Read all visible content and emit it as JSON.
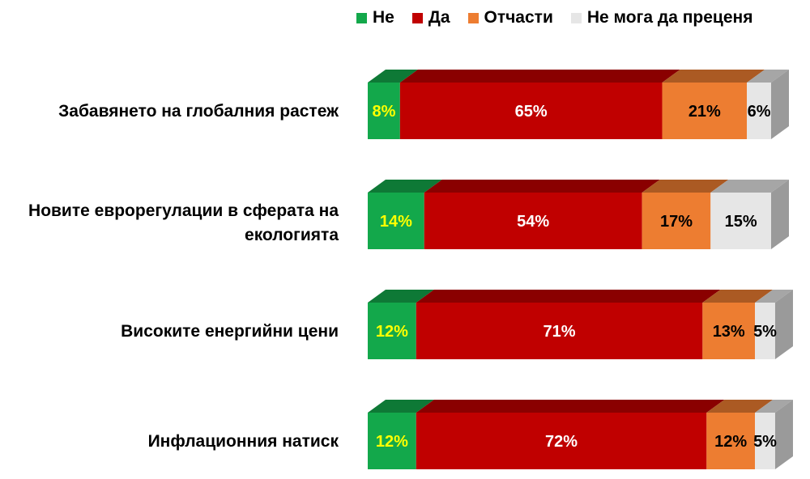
{
  "chart_data": {
    "type": "bar",
    "orientation": "horizontal",
    "stacked": true,
    "style": "3d",
    "categories": [
      "Забавянето на глобалния растеж",
      "Новите еврорегулации в сферата на екологията",
      "Високите енергийни цени",
      "Инфлационния натиск"
    ],
    "series": [
      {
        "name": "Не",
        "color": "#13A84B",
        "label_color": "#FFFF00",
        "values": [
          8,
          14,
          12,
          12
        ],
        "labels": [
          "8%",
          "14%",
          "12%",
          "12%"
        ]
      },
      {
        "name": "Да",
        "color": "#C00000",
        "label_color": "#FFFFFF",
        "values": [
          65,
          54,
          71,
          72
        ],
        "labels": [
          "65%",
          "54%",
          "71%",
          "72%"
        ]
      },
      {
        "name": "Отчасти",
        "color": "#ED7D31",
        "label_color": "#000000",
        "values": [
          21,
          17,
          13,
          12
        ],
        "labels": [
          "21%",
          "17%",
          "13%",
          "12%"
        ]
      },
      {
        "name": "Не мога да преценя",
        "color": "#E6E6E6",
        "label_color": "#000000",
        "values": [
          6,
          15,
          5,
          5
        ],
        "labels": [
          "6%",
          "15%",
          "5%",
          "5%"
        ]
      }
    ],
    "xlim": [
      0,
      100
    ],
    "grid": false,
    "legend_position": "top-right"
  }
}
